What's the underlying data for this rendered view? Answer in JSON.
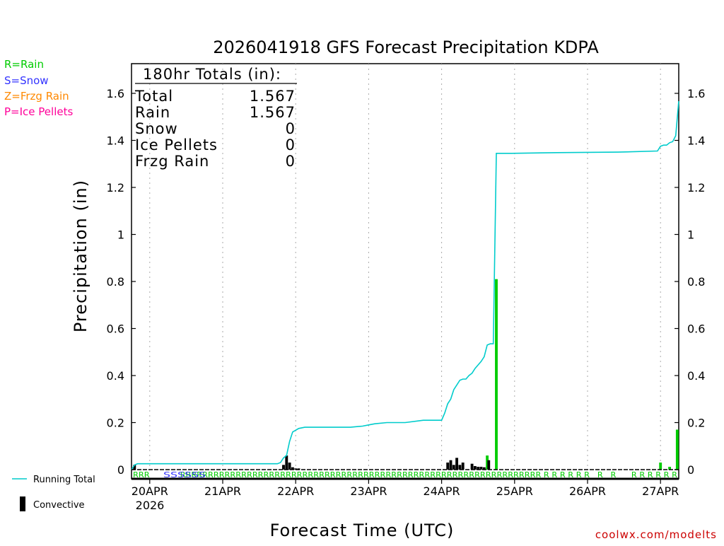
{
  "chart_data": {
    "type": "bar",
    "title": "2026041918 GFS Forecast Precipitation KDPA",
    "xlabel": "Forecast Time (UTC)",
    "ylabel": "Precipitation (in)",
    "ylim": [
      0,
      1.72
    ],
    "yticks": [
      0,
      0.2,
      0.4,
      0.6,
      0.8,
      1,
      1.2,
      1.4,
      1.6
    ],
    "ytick_labels": [
      "0",
      "0.2",
      "0.4",
      "0.6",
      "0.8",
      "1",
      "1.2",
      "1.4",
      "1.6"
    ],
    "xlim_hours": [
      0,
      180
    ],
    "xticks": [
      {
        "hour": 6,
        "label": "20APR"
      },
      {
        "hour": 30,
        "label": "21APR"
      },
      {
        "hour": 54,
        "label": "22APR"
      },
      {
        "hour": 78,
        "label": "23APR"
      },
      {
        "hour": 102,
        "label": "24APR"
      },
      {
        "hour": 126,
        "label": "25APR"
      },
      {
        "hour": 150,
        "label": "26APR"
      },
      {
        "hour": 174,
        "label": "27APR"
      }
    ],
    "year_label": "2026",
    "bar_series": [
      {
        "hour": 1,
        "value": 0.02,
        "type": "conv"
      },
      {
        "hour": 50,
        "value": 0.02,
        "type": "conv"
      },
      {
        "hour": 51,
        "value": 0.06,
        "type": "conv"
      },
      {
        "hour": 52,
        "value": 0.03,
        "type": "conv"
      },
      {
        "hour": 53,
        "value": 0.01,
        "type": "conv"
      },
      {
        "hour": 54,
        "value": 0.005,
        "type": "conv"
      },
      {
        "hour": 55,
        "value": 0.005,
        "type": "conv"
      },
      {
        "hour": 104,
        "value": 0.03,
        "type": "conv"
      },
      {
        "hour": 105,
        "value": 0.04,
        "type": "conv"
      },
      {
        "hour": 106,
        "value": 0.02,
        "type": "conv"
      },
      {
        "hour": 107,
        "value": 0.05,
        "type": "conv"
      },
      {
        "hour": 108,
        "value": 0.02,
        "type": "conv"
      },
      {
        "hour": 109,
        "value": 0.03,
        "type": "conv"
      },
      {
        "hour": 112,
        "value": 0.025,
        "type": "conv"
      },
      {
        "hour": 113,
        "value": 0.015,
        "type": "conv"
      },
      {
        "hour": 114,
        "value": 0.012,
        "type": "conv"
      },
      {
        "hour": 115,
        "value": 0.012,
        "type": "conv"
      },
      {
        "hour": 116,
        "value": 0.01,
        "type": "conv"
      },
      {
        "hour": 117,
        "value": 0.06,
        "type": "rain"
      },
      {
        "hour": 117.5,
        "value": 0.04,
        "type": "conv"
      },
      {
        "hour": 120,
        "value": 0.81,
        "type": "rain"
      },
      {
        "hour": 174,
        "value": 0.03,
        "type": "rain"
      },
      {
        "hour": 177,
        "value": 0.012,
        "type": "rain"
      },
      {
        "hour": 179.5,
        "value": 0.17,
        "type": "rain"
      }
    ],
    "running_total": {
      "hours": [
        0,
        1,
        2,
        48,
        49,
        50,
        51,
        52,
        53,
        55,
        57,
        60,
        66,
        72,
        76,
        78,
        80,
        84,
        90,
        96,
        100,
        102,
        103,
        104,
        105,
        106,
        107,
        108,
        109,
        110,
        111,
        112,
        113,
        114,
        115,
        116,
        117,
        118,
        119,
        120,
        125,
        140,
        160,
        173,
        174,
        175,
        176,
        177,
        178,
        179,
        180
      ],
      "values": [
        0.0,
        0.02,
        0.025,
        0.025,
        0.03,
        0.05,
        0.06,
        0.12,
        0.16,
        0.175,
        0.18,
        0.18,
        0.18,
        0.18,
        0.185,
        0.19,
        0.195,
        0.2,
        0.2,
        0.21,
        0.21,
        0.21,
        0.24,
        0.28,
        0.3,
        0.34,
        0.36,
        0.38,
        0.385,
        0.385,
        0.4,
        0.41,
        0.43,
        0.445,
        0.46,
        0.48,
        0.53,
        0.535,
        0.535,
        1.345,
        1.345,
        1.348,
        1.35,
        1.355,
        1.375,
        1.38,
        1.38,
        1.39,
        1.395,
        1.42,
        1.567
      ]
    },
    "precip_type_labels": {
      "rain_codes": "RRR            RRRRRRRRRRRRRRRRRRRRRRRRRRRRRRRRRRRRRRRRRRRRRRRRRRRRRRRRRRRRRRRRR R R R R R R   R   R      R R R R R R",
      "snow_codes": "SSSSSS"
    },
    "legend": [
      {
        "key": "R=Rain",
        "color": "#00cc00"
      },
      {
        "key": "S=Snow",
        "color": "#3333ff"
      },
      {
        "key": "Z=Frzg Rain",
        "color": "#ff8800"
      },
      {
        "key": "P=Ice Pellets",
        "color": "#ff0099"
      }
    ],
    "bottom_legend": [
      {
        "label": "Running Total",
        "color": "#00cccc"
      },
      {
        "label": "Convective",
        "color": "#000000"
      }
    ],
    "totals_box": {
      "header": "180hr Totals (in):",
      "rows": [
        {
          "label": "Total",
          "value": "1.567"
        },
        {
          "label": "Rain",
          "value": "1.567"
        },
        {
          "label": "Snow",
          "value": "0"
        },
        {
          "label": "Ice Pellets",
          "value": "0"
        },
        {
          "label": "Frzg Rain",
          "value": "0"
        }
      ]
    },
    "credit": "coolwx.com/modelts",
    "colors": {
      "rain_bar": "#00cc00",
      "conv_bar": "#000000",
      "running_total": "#00cccc",
      "grid": "#aaaaaa",
      "snow": "#3333ff"
    }
  }
}
